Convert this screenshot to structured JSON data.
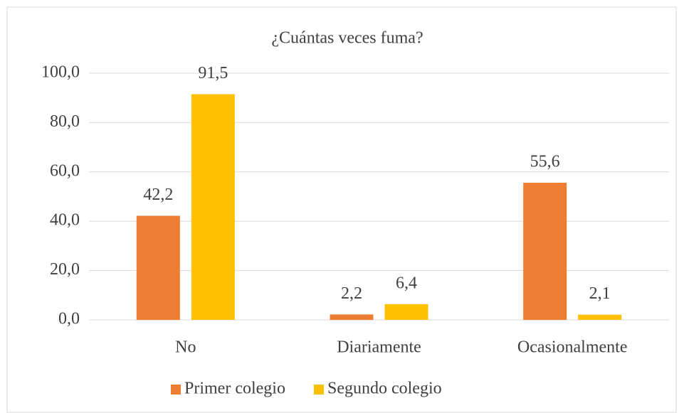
{
  "chart_data": {
    "type": "bar",
    "title": "¿Cuántas veces fuma?",
    "categories": [
      "No",
      "Diariamente",
      "Ocasionalmente"
    ],
    "series": [
      {
        "name": "Primer colegio",
        "color": "#ed7d31",
        "values": [
          42.2,
          2.2,
          55.6
        ],
        "value_labels": [
          "42,2",
          "2,2",
          "55,6"
        ]
      },
      {
        "name": "Segundo colegio",
        "color": "#ffc000",
        "values": [
          91.5,
          6.4,
          2.1
        ],
        "value_labels": [
          "91,5",
          "6,4",
          "2,1"
        ]
      }
    ],
    "ylim": [
      0,
      100
    ],
    "yticks": [
      {
        "value": 0,
        "label": "0,0"
      },
      {
        "value": 20,
        "label": "20,0"
      },
      {
        "value": 40,
        "label": "40,0"
      },
      {
        "value": 60,
        "label": "60,0"
      },
      {
        "value": 80,
        "label": "80,0"
      },
      {
        "value": 100,
        "label": "100,0"
      }
    ],
    "grid": true,
    "legend": "bottom"
  }
}
